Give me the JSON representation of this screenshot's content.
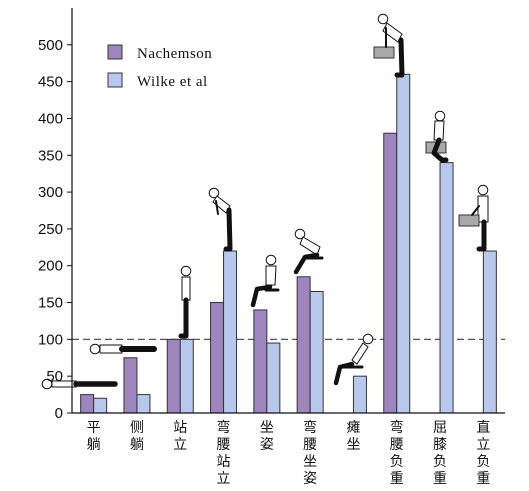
{
  "chart_data": {
    "type": "bar",
    "title": "",
    "xlabel": "",
    "ylabel": "",
    "ylim": [
      0,
      550
    ],
    "yticks": [
      0,
      50,
      100,
      150,
      200,
      250,
      300,
      350,
      400,
      450,
      500
    ],
    "reference_line": {
      "value": 100,
      "style": "dashed"
    },
    "legend_position": "top-left",
    "categories": [
      "平躺",
      "侧躺",
      "站立",
      "弯腰站立",
      "坐姿",
      "弯腰坐姿",
      "瘫坐",
      "弯腰负重",
      "屈膝负重",
      "直立负重"
    ],
    "series": [
      {
        "name": "Nachemson",
        "color": "#9e85be",
        "values": [
          25,
          75,
          100,
          150,
          140,
          185,
          null,
          380,
          null,
          null
        ]
      },
      {
        "name": "Wilke et al",
        "color": "#b8c8ec",
        "values": [
          20,
          25,
          100,
          220,
          95,
          165,
          50,
          460,
          340,
          220
        ]
      }
    ],
    "pictograms": [
      "lying-figure-icon",
      "side-lying-figure-icon",
      "standing-figure-icon",
      "bent-standing-figure-icon",
      "sitting-figure-icon",
      "bent-sitting-figure-icon",
      "slouched-figure-icon",
      "bent-lifting-figure-icon",
      "squat-lifting-figure-icon",
      "upright-lifting-figure-icon"
    ]
  }
}
